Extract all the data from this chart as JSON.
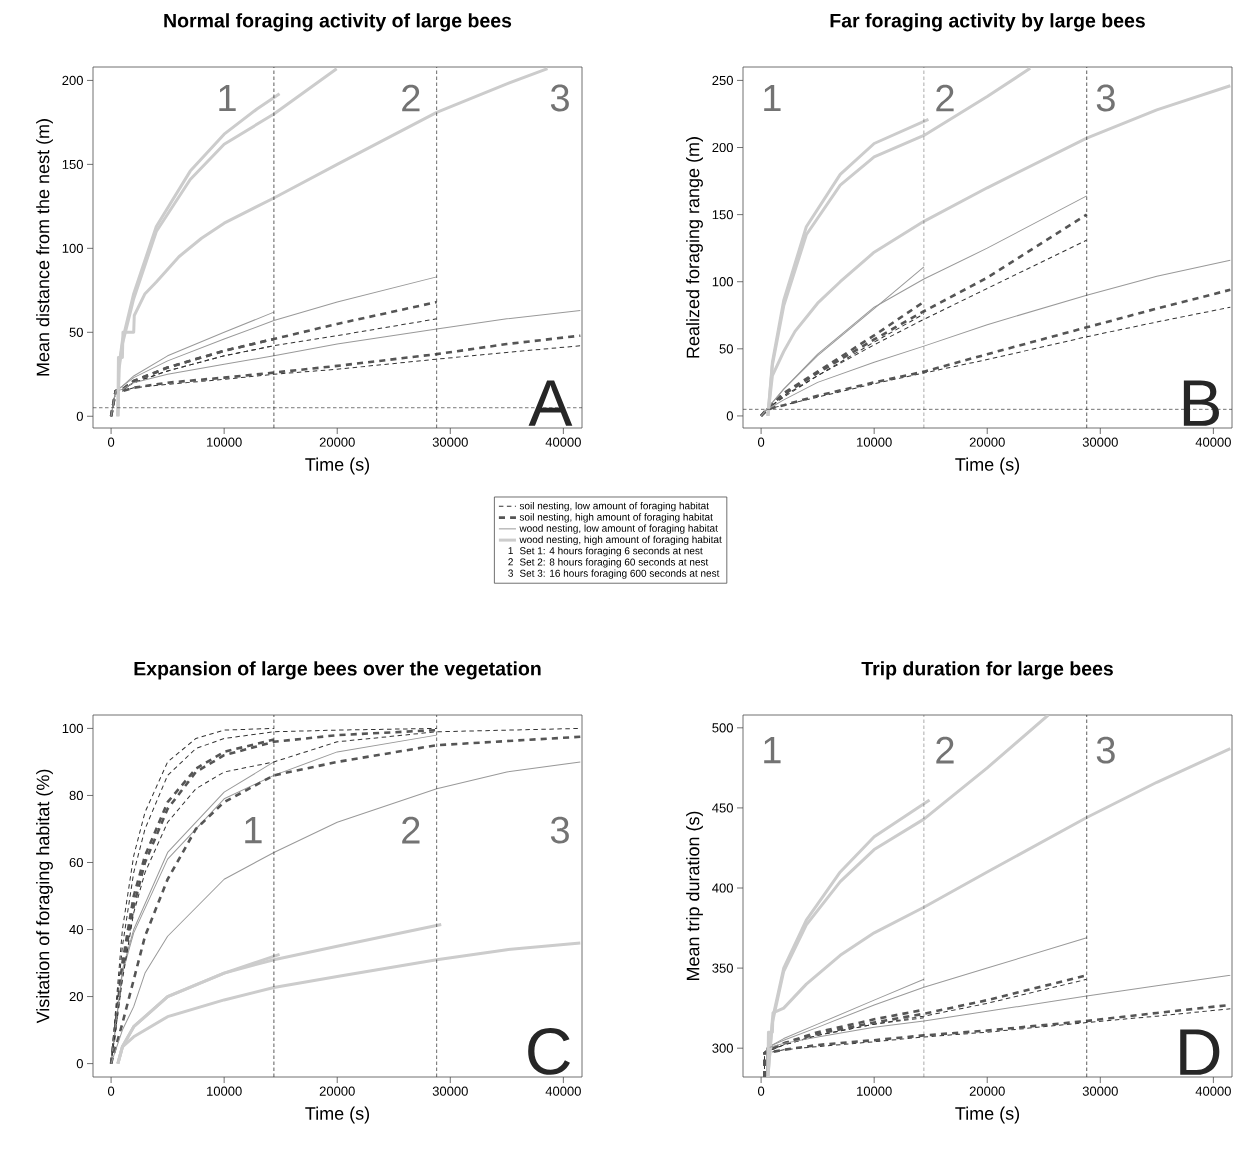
{
  "chart_data": [
    {
      "type": "line",
      "title": "Normal foraging activity of large bees",
      "xlabel": "Time (s)",
      "ylabel": "Mean distance from the nest (m)",
      "xlim": [
        -1600,
        41650
      ],
      "ylim": [
        -7,
        208
      ],
      "xticks": [
        0,
        10000,
        20000,
        30000,
        40000
      ],
      "yticks": [
        0,
        50,
        100,
        150,
        200
      ],
      "legend": "bottom right",
      "ref_lines": [
        {
          "axis": "x",
          "value": 14400,
          "color": "#333333",
          "line_style": "dashed"
        },
        {
          "axis": "x",
          "value": 28800,
          "color": "#333333",
          "line_style": "dashed"
        },
        {
          "axis": "y",
          "value": 5,
          "color": "#333333",
          "line_style": "dashed"
        }
      ],
      "annotations": [
        "1",
        "2",
        "3",
        "A",
        "1",
        "Set 1: 4 hours foraging 6 seconds at nest",
        "2",
        "Set 2: 8 hours foraging 60 seconds at nest",
        "3",
        "Set 3: 16 hours foraging 600 seconds at nest"
      ],
      "series": [
        {
          "name": "soil nesting, low amount of foraging habitat",
          "color": "#333333",
          "line_style": "dashed",
          "x": [
            0,
            400,
            1000,
            2000,
            5000,
            10000,
            14400
          ],
          "values": [
            0,
            15,
            16,
            20,
            27,
            36,
            42
          ]
        },
        {
          "name": "soil nesting, high amount of foraging habitat",
          "color": "#555555",
          "line_style": "dashed",
          "x": [
            0,
            400,
            1000,
            2000,
            5000,
            10000,
            14400
          ],
          "values": [
            0,
            15,
            16,
            21,
            29,
            39,
            46
          ]
        },
        {
          "name": "wood nesting, low amount of foraging habitat",
          "color": "#999999",
          "line_style": "solid",
          "x": [
            0,
            400,
            1000,
            2000,
            5000,
            10000,
            14400
          ],
          "values": [
            0,
            15,
            18,
            24,
            36,
            50,
            62
          ]
        },
        {
          "name": "wood nesting, high amount of foraging habitat",
          "color": "#cccccc",
          "line_style": "solid",
          "x": [
            600,
            700,
            1000,
            2000,
            4000,
            7000,
            10000,
            12900,
            14900
          ],
          "values": [
            0,
            30,
            45,
            73,
            113,
            146,
            168,
            183,
            192
          ]
        },
        {
          "color": "#333333",
          "line_style": "dashed",
          "x": [
            0,
            400,
            1000,
            2000,
            5000,
            10000,
            14400,
            20000,
            28800
          ],
          "values": [
            0,
            15,
            16,
            20,
            27,
            36,
            42,
            48,
            58
          ]
        },
        {
          "color": "#555555",
          "line_style": "dashed",
          "x": [
            0,
            400,
            1000,
            2000,
            5000,
            10000,
            14400,
            20000,
            28800
          ],
          "values": [
            0,
            15,
            16,
            21,
            29,
            39,
            46,
            55,
            68
          ]
        },
        {
          "color": "#999999",
          "line_style": "solid",
          "x": [
            0,
            400,
            1000,
            2000,
            5000,
            10000,
            14400,
            20000,
            28800
          ],
          "values": [
            0,
            15,
            18,
            23,
            33,
            46,
            57,
            68,
            83
          ]
        },
        {
          "color": "#cccccc",
          "line_style": "solid",
          "x": [
            600,
            700,
            1000,
            2000,
            4000,
            7000,
            10000,
            14400,
            19950
          ],
          "values": [
            0,
            28,
            43,
            70,
            110,
            141,
            162,
            180,
            207
          ]
        },
        {
          "color": "#333333",
          "line_style": "dashed",
          "x": [
            0,
            400,
            1000,
            2000,
            5000,
            10000,
            14400,
            20000,
            28800,
            35000,
            41500
          ],
          "values": [
            0,
            15,
            15,
            17,
            19,
            22,
            25,
            28,
            34,
            38,
            42
          ]
        },
        {
          "color": "#555555",
          "line_style": "dashed",
          "x": [
            0,
            400,
            1000,
            2000,
            5000,
            10000,
            14400,
            20000,
            28800,
            35000,
            41500
          ],
          "values": [
            0,
            15,
            15,
            17,
            20,
            23,
            26,
            30,
            37,
            43,
            48
          ]
        },
        {
          "color": "#999999",
          "line_style": "solid",
          "x": [
            0,
            400,
            1000,
            2000,
            5000,
            10000,
            14400,
            20000,
            28800,
            35000,
            41500
          ],
          "values": [
            0,
            15,
            16,
            20,
            25,
            31,
            36,
            43,
            52,
            58,
            63
          ]
        },
        {
          "color": "#cccccc",
          "line_style": "solid",
          "x": [
            600,
            650,
            1000,
            1050,
            2000,
            2050,
            3000,
            4000,
            6000,
            8000,
            10000,
            14400,
            20000,
            28800,
            35000,
            38600
          ],
          "values": [
            0,
            35,
            35,
            50,
            50,
            60,
            73,
            80,
            95,
            106,
            115,
            130,
            150,
            181,
            198,
            207
          ]
        }
      ]
    },
    {
      "type": "line",
      "title": "Far foraging activity by large bees",
      "xlabel": "Time (s)",
      "ylabel": "Realized foraging range (m)",
      "xlim": [
        -1600,
        41650
      ],
      "ylim": [
        -9,
        260
      ],
      "xticks": [
        0,
        10000,
        20000,
        30000,
        40000
      ],
      "yticks": [
        0,
        50,
        100,
        150,
        200,
        250
      ],
      "ref_lines": [
        {
          "axis": "x",
          "value": 14400,
          "color": "#333333",
          "line_style": "dashed"
        },
        {
          "axis": "x",
          "value": 28800,
          "color": "#333333",
          "line_style": "dashed"
        },
        {
          "axis": "y",
          "value": 5,
          "color": "#333333",
          "line_style": "dashed"
        }
      ],
      "annotations": [
        "1",
        "2",
        "3",
        "B"
      ],
      "series": [
        {
          "color": "#333333",
          "line_style": "dashed",
          "x": [
            0,
            500,
            1000,
            2000,
            5000,
            10000,
            14400
          ],
          "values": [
            0,
            5,
            8,
            15,
            30,
            55,
            76
          ]
        },
        {
          "color": "#555555",
          "line_style": "dashed",
          "x": [
            0,
            500,
            1000,
            2000,
            5000,
            10000,
            14400
          ],
          "values": [
            0,
            5,
            9,
            17,
            33,
            60,
            85
          ]
        },
        {
          "color": "#999999",
          "line_style": "solid",
          "x": [
            0,
            500,
            1000,
            2000,
            5000,
            10000,
            14400
          ],
          "values": [
            0,
            5,
            10,
            20,
            45,
            80,
            111
          ]
        },
        {
          "color": "#cccccc",
          "line_style": "solid",
          "x": [
            600,
            1000,
            2000,
            4000,
            7000,
            10000,
            14800
          ],
          "values": [
            0,
            40,
            86,
            141,
            180,
            203,
            221
          ]
        },
        {
          "color": "#333333",
          "line_style": "dashed",
          "x": [
            0,
            500,
            1000,
            2000,
            5000,
            10000,
            14400,
            20000,
            28800
          ],
          "values": [
            0,
            5,
            8,
            14,
            30,
            53,
            72,
            95,
            131
          ]
        },
        {
          "color": "#555555",
          "line_style": "dashed",
          "x": [
            0,
            500,
            1000,
            2000,
            5000,
            10000,
            14400,
            20000,
            28800
          ],
          "values": [
            0,
            5,
            9,
            16,
            32,
            57,
            78,
            103,
            150
          ]
        },
        {
          "color": "#999999",
          "line_style": "solid",
          "x": [
            0,
            500,
            1000,
            2000,
            5000,
            10000,
            14400,
            20000,
            28800
          ],
          "values": [
            0,
            5,
            10,
            20,
            46,
            81,
            102,
            125,
            164
          ]
        },
        {
          "color": "#cccccc",
          "line_style": "solid",
          "x": [
            600,
            1000,
            2000,
            4000,
            7000,
            10000,
            14400,
            20000,
            23800
          ],
          "values": [
            0,
            38,
            82,
            135,
            172,
            193,
            209,
            238,
            259
          ]
        },
        {
          "color": "#333333",
          "line_style": "dashed",
          "x": [
            0,
            500,
            1000,
            2000,
            5000,
            10000,
            14400,
            20000,
            28800,
            35000,
            41500
          ],
          "values": [
            0,
            4,
            6,
            8,
            14,
            24,
            32,
            42,
            59,
            70,
            81
          ]
        },
        {
          "color": "#555555",
          "line_style": "dashed",
          "x": [
            0,
            500,
            1000,
            2000,
            5000,
            10000,
            14400,
            20000,
            28800,
            35000,
            41500
          ],
          "values": [
            0,
            4,
            6,
            8,
            15,
            25,
            33,
            46,
            66,
            80,
            94
          ]
        },
        {
          "color": "#999999",
          "line_style": "solid",
          "x": [
            0,
            500,
            1000,
            2000,
            5000,
            10000,
            14400,
            20000,
            28800,
            35000,
            41500
          ],
          "values": [
            0,
            5,
            7,
            12,
            25,
            40,
            52,
            68,
            90,
            104,
            116
          ]
        },
        {
          "color": "#cccccc",
          "line_style": "solid",
          "x": [
            600,
            1000,
            2000,
            3000,
            5000,
            7000,
            10000,
            14400,
            20000,
            28800,
            35000,
            41500
          ],
          "values": [
            0,
            30,
            48,
            63,
            84,
            100,
            122,
            145,
            170,
            207,
            228,
            246
          ]
        }
      ]
    },
    {
      "type": "line",
      "title": "Expansion of large bees over the vegetation",
      "xlabel": "Time (s)",
      "ylabel": "Visitation of foraging habitat (%)",
      "xlim": [
        -1600,
        41650
      ],
      "ylim": [
        -4,
        104
      ],
      "xticks": [
        0,
        10000,
        20000,
        30000,
        40000
      ],
      "yticks": [
        0,
        20,
        40,
        60,
        80,
        100
      ],
      "ref_lines": [
        {
          "axis": "x",
          "value": 14400,
          "color": "#333333",
          "line_style": "dashed"
        },
        {
          "axis": "x",
          "value": 28800,
          "color": "#333333",
          "line_style": "dashed"
        }
      ],
      "annotations": [
        "1",
        "2",
        "3",
        "C"
      ],
      "series": [
        {
          "color": "#333333",
          "line_style": "dashed",
          "x": [
            0,
            1000,
            2000,
            3000,
            5000,
            7500,
            10000,
            14400
          ],
          "values": [
            0,
            40,
            62,
            75,
            90,
            97,
            99.5,
            100
          ]
        },
        {
          "color": "#555555",
          "line_style": "dashed",
          "x": [
            0,
            1000,
            2000,
            3000,
            5000,
            7500,
            10000,
            14400
          ],
          "values": [
            0,
            30,
            50,
            62,
            78,
            88,
            93,
            96.7
          ]
        },
        {
          "color": "#999999",
          "line_style": "solid",
          "x": [
            0,
            1000,
            2000,
            5000,
            10000,
            14400
          ],
          "values": [
            0,
            28,
            40,
            63,
            81,
            90
          ]
        },
        {
          "color": "#cccccc",
          "line_style": "solid",
          "x": [
            600,
            1000,
            2000,
            5000,
            10000,
            14900
          ],
          "values": [
            0,
            5,
            11,
            20,
            27,
            32.6
          ]
        },
        {
          "color": "#333333",
          "line_style": "dashed",
          "x": [
            0,
            1000,
            2000,
            3000,
            5000,
            7500,
            10000,
            14400,
            20000,
            28800
          ],
          "values": [
            0,
            35,
            57,
            70,
            86,
            94,
            97,
            99,
            99.5,
            100
          ]
        },
        {
          "color": "#555555",
          "line_style": "dashed",
          "x": [
            0,
            1000,
            2000,
            3000,
            5000,
            7500,
            10000,
            14400,
            20000,
            28800
          ],
          "values": [
            0,
            28,
            47,
            60,
            76,
            87,
            92,
            96,
            98,
            99.5
          ]
        },
        {
          "color": "#999999",
          "line_style": "solid",
          "x": [
            0,
            1000,
            2000,
            5000,
            10000,
            14400,
            20000,
            28800
          ],
          "values": [
            0,
            27,
            39,
            61,
            79,
            86,
            93,
            98
          ]
        },
        {
          "color": "#cccccc",
          "line_style": "solid",
          "x": [
            600,
            1000,
            2000,
            5000,
            10000,
            14400,
            20000,
            29200
          ],
          "values": [
            0,
            5,
            11,
            20,
            27,
            31,
            35,
            41.5
          ]
        },
        {
          "color": "#333333",
          "line_style": "dashed",
          "x": [
            0,
            1000,
            2000,
            3000,
            5000,
            7500,
            10000,
            14400,
            20000,
            28800,
            41500
          ],
          "values": [
            0,
            25,
            45,
            57,
            72,
            82,
            87,
            90,
            96,
            99,
            100
          ]
        },
        {
          "color": "#555555",
          "line_style": "dashed",
          "x": [
            0,
            1000,
            2000,
            3000,
            5000,
            7500,
            10000,
            14400,
            20000,
            28800,
            41500
          ],
          "values": [
            0,
            12,
            25,
            38,
            55,
            70,
            78,
            86,
            90,
            95,
            97.5
          ]
        },
        {
          "color": "#999999",
          "line_style": "solid",
          "x": [
            0,
            1000,
            2000,
            3000,
            5000,
            10000,
            14400,
            20000,
            28800,
            35000,
            41500
          ],
          "values": [
            0,
            10,
            17,
            27,
            38,
            55,
            63,
            72,
            82,
            87,
            90
          ]
        },
        {
          "color": "#cccccc",
          "line_style": "solid",
          "x": [
            600,
            1000,
            2000,
            5000,
            10000,
            14400,
            20000,
            28800,
            35000,
            41500
          ],
          "values": [
            0,
            5,
            8,
            14,
            19,
            22.7,
            26,
            31,
            34,
            36
          ]
        }
      ]
    },
    {
      "type": "line",
      "title": "Trip duration for large bees",
      "xlabel": "Time (s)",
      "ylabel": "Mean trip duration (s)",
      "xlim": [
        -1600,
        41650
      ],
      "ylim": [
        282,
        508
      ],
      "xticks": [
        0,
        10000,
        20000,
        30000,
        40000
      ],
      "yticks": [
        300,
        350,
        400,
        450,
        500
      ],
      "ref_lines": [
        {
          "axis": "x",
          "value": 14400,
          "color": "#333333",
          "line_style": "dashed"
        },
        {
          "axis": "x",
          "value": 28800,
          "color": "#333333",
          "line_style": "dashed"
        }
      ],
      "annotations": [
        "1",
        "2",
        "3",
        "D"
      ],
      "series": [
        {
          "color": "#333333",
          "line_style": "dashed",
          "x": [
            300,
            300,
            500,
            2000,
            5000,
            10000,
            14400
          ],
          "values": [
            282,
            297,
            298,
            302,
            308,
            315,
            319
          ]
        },
        {
          "color": "#555555",
          "line_style": "dashed",
          "x": [
            300,
            300,
            500,
            2000,
            5000,
            10000,
            14400
          ],
          "values": [
            282,
            297,
            298,
            303,
            310,
            318,
            324
          ]
        },
        {
          "color": "#999999",
          "line_style": "solid",
          "x": [
            500,
            500,
            1000,
            2000,
            5000,
            10000,
            14400
          ],
          "values": [
            282,
            300,
            302,
            306,
            315,
            330,
            343
          ]
        },
        {
          "color": "#cccccc",
          "line_style": "solid",
          "x": [
            600,
            1000,
            2000,
            4000,
            7000,
            10000,
            14900
          ],
          "values": [
            282,
            318,
            350,
            380,
            410,
            432,
            455
          ]
        },
        {
          "color": "#333333",
          "line_style": "dashed",
          "x": [
            300,
            300,
            500,
            2000,
            5000,
            10000,
            14400,
            20000,
            28800
          ],
          "values": [
            282,
            297,
            298,
            302,
            308,
            315,
            320,
            328,
            343
          ]
        },
        {
          "color": "#555555",
          "line_style": "dashed",
          "x": [
            300,
            300,
            500,
            2000,
            5000,
            10000,
            14400,
            20000,
            28800
          ],
          "values": [
            282,
            297,
            298,
            303,
            309,
            316,
            321.5,
            330,
            345.5
          ]
        },
        {
          "color": "#999999",
          "line_style": "solid",
          "x": [
            500,
            500,
            1000,
            2000,
            5000,
            10000,
            14400,
            20000,
            28800
          ],
          "values": [
            282,
            300,
            302,
            305,
            313,
            327,
            338,
            350,
            369
          ]
        },
        {
          "color": "#cccccc",
          "line_style": "solid",
          "x": [
            600,
            1000,
            2000,
            4000,
            7000,
            10000,
            14400,
            20000,
            25400
          ],
          "values": [
            282,
            316,
            348,
            377,
            404,
            424,
            443,
            475,
            508
          ]
        },
        {
          "color": "#333333",
          "line_style": "dashed",
          "x": [
            300,
            300,
            500,
            2000,
            5000,
            10000,
            14400,
            20000,
            28800,
            35000,
            41500
          ],
          "values": [
            282,
            297,
            297,
            299,
            301,
            304,
            307,
            310,
            316,
            320,
            324.6
          ]
        },
        {
          "color": "#555555",
          "line_style": "dashed",
          "x": [
            300,
            300,
            500,
            2000,
            5000,
            10000,
            14400,
            20000,
            28800,
            35000,
            41500
          ],
          "values": [
            282,
            297,
            297,
            299,
            302,
            305,
            308,
            311,
            317,
            322,
            327
          ]
        },
        {
          "color": "#999999",
          "line_style": "solid",
          "x": [
            500,
            500,
            1000,
            2000,
            5000,
            10000,
            14400,
            20000,
            28800,
            35000,
            41500
          ],
          "values": [
            282,
            300,
            301,
            303,
            307,
            313,
            317,
            323,
            332.6,
            339,
            345.5
          ]
        },
        {
          "color": "#cccccc",
          "line_style": "solid",
          "x": [
            600,
            650,
            1000,
            1050,
            2000,
            4000,
            7000,
            10000,
            14400,
            20000,
            28800,
            35000,
            41500
          ],
          "values": [
            282,
            310,
            310,
            322,
            325,
            340,
            358,
            372,
            388,
            410,
            444,
            466,
            487
          ]
        }
      ]
    }
  ]
}
